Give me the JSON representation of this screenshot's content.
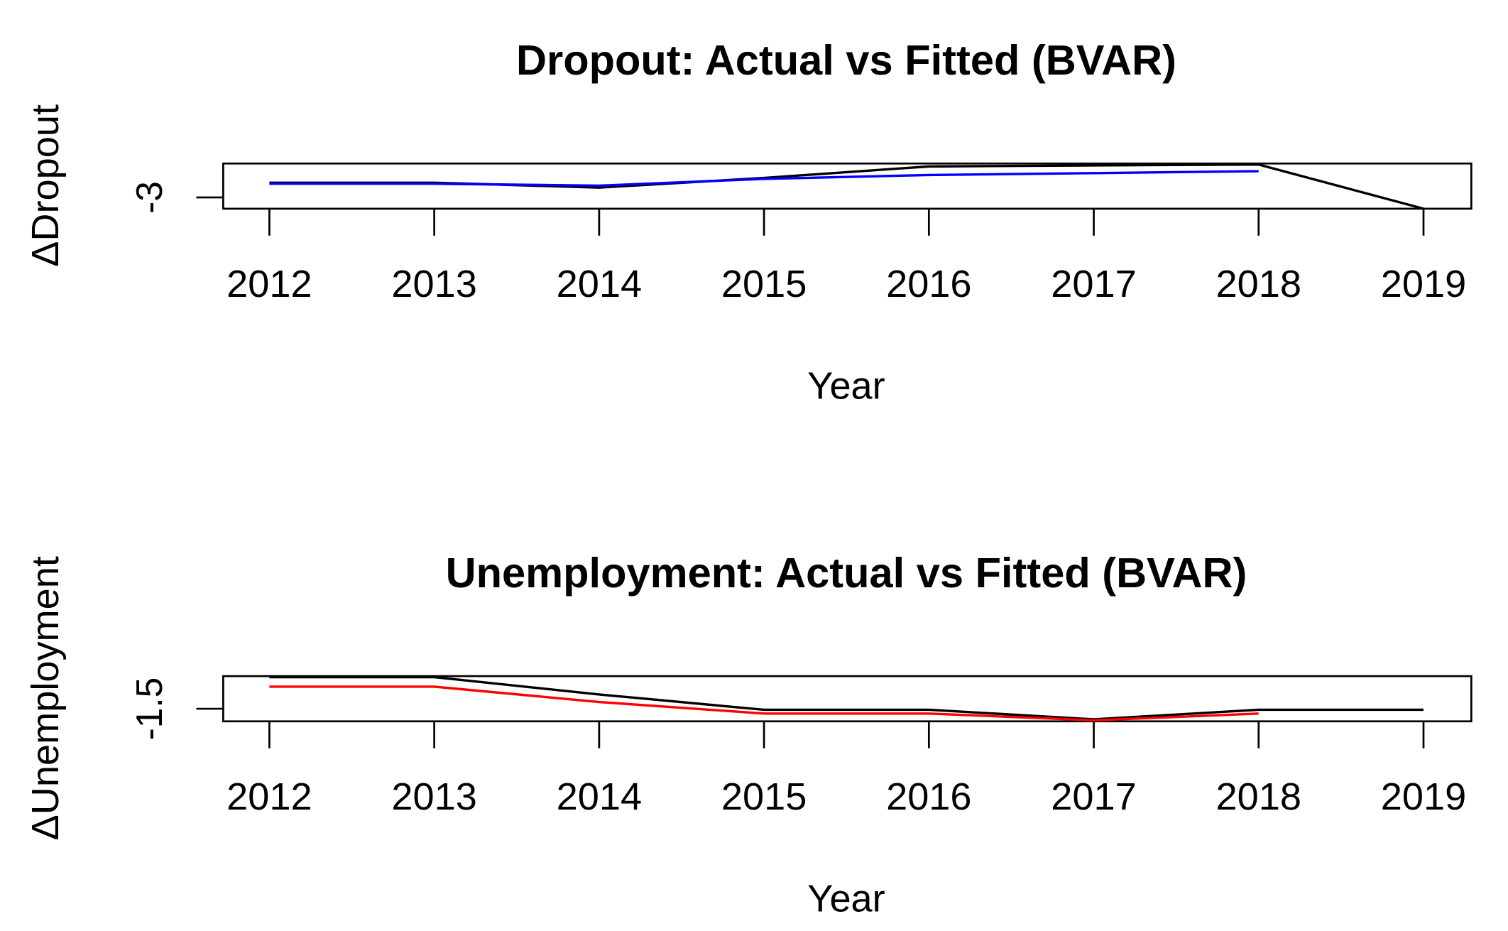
{
  "chart_data": [
    {
      "type": "line",
      "title": "Dropout: Actual vs Fitted (BVAR)",
      "x_label": "Year",
      "y_label": "ΔDropout",
      "x": [
        2012,
        2013,
        2014,
        2015,
        2016,
        2017,
        2018,
        2019
      ],
      "series": [
        {
          "color": "#000000",
          "values": [
            -1.7,
            -1.7,
            -2.13,
            -1.28,
            -0.26,
            -0.17,
            -0.09,
            -4.0
          ]
        },
        {
          "color": "#0000ff",
          "values": [
            -1.79,
            -1.79,
            -1.96,
            -1.36,
            -1.02,
            -0.85,
            -0.68,
            null
          ]
        }
      ],
      "xlim": [
        2011.72,
        2019.29
      ],
      "xticks": [
        2012,
        2013,
        2014,
        2015,
        2016,
        2017,
        2018,
        2019
      ],
      "ylim": [
        -4,
        0
      ],
      "yticks": [
        -3
      ]
    },
    {
      "type": "line",
      "title": "Unemployment: Actual vs Fitted (BVAR)",
      "x_label": "Year",
      "y_label": "ΔUnemployment",
      "x": [
        2012,
        2013,
        2014,
        2015,
        2016,
        2017,
        2018,
        2019
      ],
      "series": [
        {
          "color": "#000000",
          "values": [
            -0.24,
            -0.24,
            -0.93,
            -1.54,
            -1.54,
            -1.92,
            -1.54,
            -1.54
          ]
        },
        {
          "color": "#ff0000",
          "values": [
            -0.62,
            -0.62,
            -1.23,
            -1.69,
            -1.69,
            -1.96,
            -1.69,
            null
          ]
        }
      ],
      "xlim": [
        2011.72,
        2019.29
      ],
      "xticks": [
        2012,
        2013,
        2014,
        2015,
        2016,
        2017,
        2018,
        2019
      ],
      "ylim": [
        -2,
        -0.2
      ],
      "yticks": [
        -1.5
      ]
    }
  ]
}
